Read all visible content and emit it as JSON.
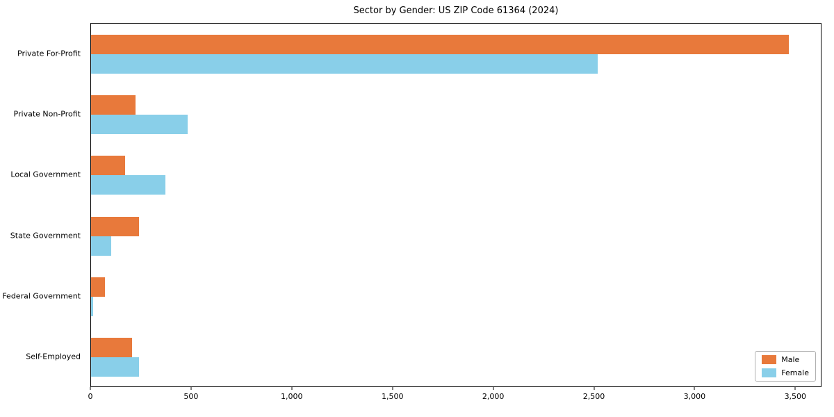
{
  "chart_data": {
    "type": "bar",
    "orientation": "horizontal",
    "title": "Sector by Gender: US ZIP Code 61364 (2024)",
    "categories": [
      "Private For-Profit",
      "Private Non-Profit",
      "Local Government",
      "State Government",
      "Federal Government",
      "Self-Employed"
    ],
    "series": [
      {
        "name": "Male",
        "color": "#e8793b",
        "values": [
          3470,
          220,
          170,
          240,
          70,
          205
        ]
      },
      {
        "name": "Female",
        "color": "#89cfe9",
        "values": [
          2520,
          480,
          370,
          100,
          10,
          240
        ]
      }
    ],
    "xlim": [
      0,
      3630
    ],
    "xticks": [
      0,
      500,
      1000,
      1500,
      2000,
      2500,
      3000,
      3500
    ],
    "xtick_labels": [
      "0",
      "500",
      "1,000",
      "1,500",
      "2,000",
      "2,500",
      "3,000",
      "3,500"
    ],
    "legend_position": "lower right",
    "grid": false,
    "background": "#ffffff"
  }
}
